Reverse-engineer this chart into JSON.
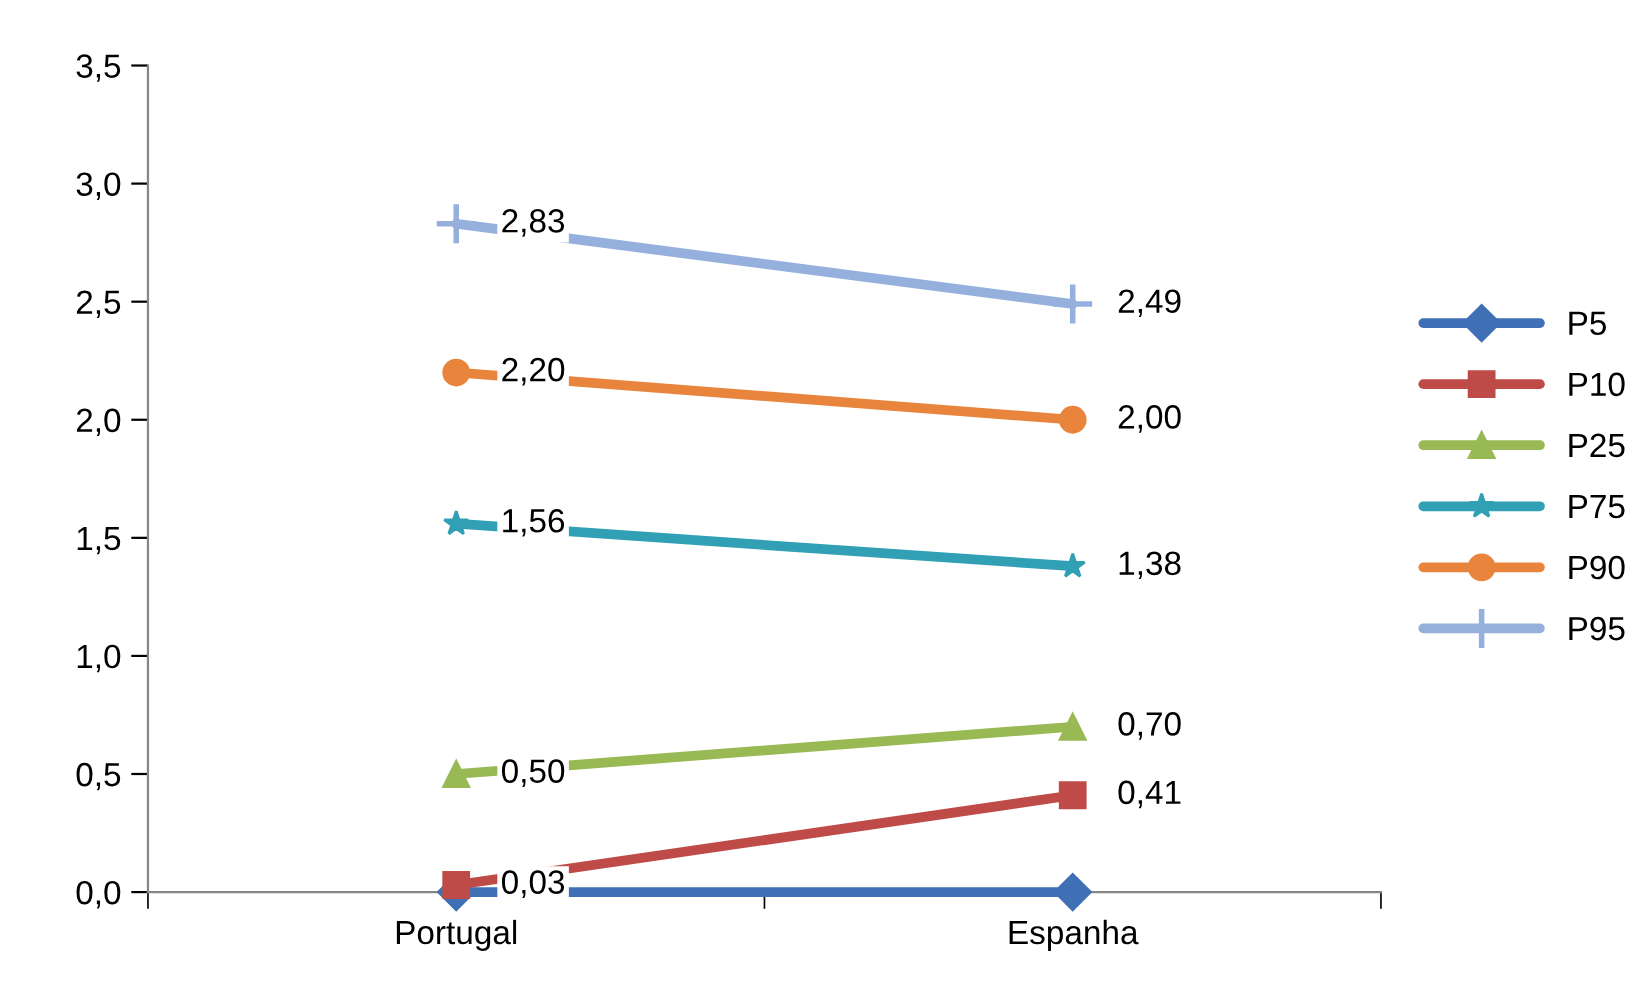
{
  "chart_data": {
    "type": "line",
    "categories": [
      "Portugal",
      "Espanha"
    ],
    "ylim": [
      0,
      3.5
    ],
    "yticks": [
      {
        "value": 0,
        "label": "0,0"
      },
      {
        "value": 0.5,
        "label": "0,5"
      },
      {
        "value": 1.0,
        "label": "1,0"
      },
      {
        "value": 1.5,
        "label": "1,5"
      },
      {
        "value": 2.0,
        "label": "2,0"
      },
      {
        "value": 2.5,
        "label": "2,5"
      },
      {
        "value": 3.0,
        "label": "3,0"
      },
      {
        "value": 3.5,
        "label": "3,5"
      }
    ],
    "grid": false,
    "legend": "right",
    "series": [
      {
        "name": "P5",
        "color": "#3f6fb5",
        "marker": "diamond",
        "values": [
          0,
          0
        ]
      },
      {
        "name": "P10",
        "color": "#be4b48",
        "marker": "square",
        "values": [
          0.03,
          0.41
        ],
        "value_labels": [
          "0,03",
          "0,41"
        ]
      },
      {
        "name": "P25",
        "color": "#98b954",
        "marker": "triangle",
        "values": [
          0.5,
          0.7
        ],
        "value_labels": [
          "0,50",
          "0,70"
        ]
      },
      {
        "name": "P75",
        "color": "#31a0b4",
        "marker": "star",
        "values": [
          1.56,
          1.38
        ],
        "value_labels": [
          "1,56",
          "1,38"
        ]
      },
      {
        "name": "P90",
        "color": "#e8843c",
        "marker": "circle",
        "values": [
          2.2,
          2.0
        ],
        "value_labels": [
          "2,20",
          "2,00"
        ]
      },
      {
        "name": "P95",
        "color": "#95b0dc",
        "marker": "cross",
        "values": [
          2.83,
          2.49
        ],
        "value_labels": [
          "2,83",
          "2,49"
        ]
      }
    ]
  }
}
